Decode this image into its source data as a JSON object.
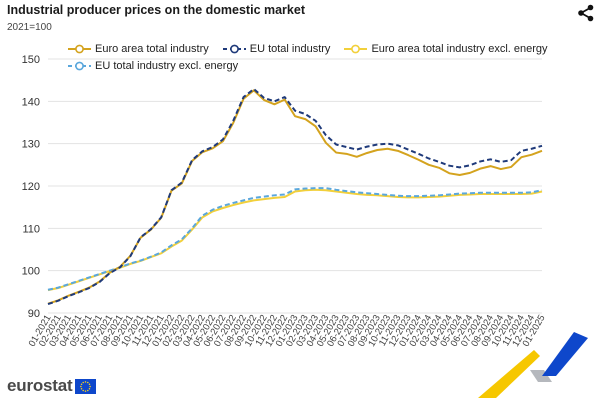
{
  "header": {
    "title": "Industrial producer prices on the domestic market",
    "subtitle": "2021=100",
    "share_icon": "share-icon"
  },
  "brand": {
    "name": "eurostat",
    "flag_color": "#0e47cb",
    "star_color": "#ffd617"
  },
  "colors": {
    "ea_total": "#d4a31e",
    "eu_total": "#1f3a7a",
    "ea_excl": "#f2d03b",
    "eu_excl": "#5aa7dc",
    "grid": "#e3e3e3",
    "deco_yellow": "#f6c700",
    "deco_blue": "#0e47cb",
    "deco_grey": "#b5b8bd"
  },
  "chart_data": {
    "type": "line",
    "title": "Industrial producer prices on the domestic market",
    "ylabel": "2021=100",
    "ylim": [
      90,
      150
    ],
    "yticks": [
      90,
      100,
      110,
      120,
      130,
      140,
      150
    ],
    "grid": true,
    "legend_position": "top",
    "x": [
      "01-2021",
      "02-2021",
      "03-2021",
      "04-2021",
      "05-2021",
      "06-2021",
      "07-2021",
      "08-2021",
      "09-2021",
      "10-2021",
      "11-2021",
      "12-2021",
      "01-2022",
      "02-2022",
      "03-2022",
      "04-2022",
      "05-2022",
      "06-2022",
      "07-2022",
      "08-2022",
      "09-2022",
      "10-2022",
      "11-2022",
      "12-2022",
      "01-2023",
      "02-2023",
      "03-2023",
      "04-2023",
      "05-2023",
      "06-2023",
      "07-2023",
      "08-2023",
      "09-2023",
      "10-2023",
      "11-2023",
      "12-2023",
      "01-2024",
      "02-2024",
      "03-2024",
      "04-2024",
      "05-2024",
      "06-2024",
      "07-2024",
      "08-2024",
      "09-2024",
      "10-2024",
      "11-2024",
      "12-2024",
      "01-2025"
    ],
    "series": [
      {
        "name": "Euro area total industry",
        "color": "#d4a31e",
        "dash": false,
        "values": [
          92.2,
          93.0,
          94.1,
          95.0,
          96.0,
          97.4,
          99.5,
          100.9,
          103.5,
          107.8,
          109.7,
          112.5,
          118.9,
          120.6,
          125.9,
          128.0,
          128.9,
          130.6,
          134.9,
          140.6,
          142.6,
          140.3,
          139.3,
          140.4,
          136.5,
          135.8,
          134.1,
          130.2,
          127.9,
          127.6,
          126.9,
          127.8,
          128.5,
          128.8,
          128.3,
          127.3,
          126.2,
          125.0,
          124.3,
          123.0,
          122.6,
          123.1,
          124.1,
          124.7,
          124.0,
          124.5,
          126.8,
          127.4,
          128.3
        ]
      },
      {
        "name": "EU total industry",
        "color": "#1f3a7a",
        "dash": true,
        "values": [
          92.1,
          92.9,
          94.0,
          94.9,
          95.9,
          97.3,
          99.4,
          100.8,
          103.4,
          107.9,
          109.8,
          112.6,
          119.0,
          120.8,
          126.1,
          128.2,
          129.2,
          131.0,
          135.4,
          141.0,
          142.9,
          140.8,
          140.0,
          141.0,
          137.8,
          137.0,
          135.4,
          132.0,
          129.8,
          129.2,
          128.6,
          129.3,
          129.8,
          130.0,
          129.6,
          128.6,
          127.6,
          126.5,
          125.7,
          124.8,
          124.4,
          124.9,
          125.8,
          126.3,
          125.7,
          126.1,
          128.3,
          128.8,
          129.5
        ]
      },
      {
        "name": "Euro area total industry excl. energy",
        "color": "#f2d03b",
        "dash": false,
        "values": [
          95.4,
          95.9,
          96.7,
          97.5,
          98.3,
          99.1,
          99.9,
          100.7,
          101.6,
          102.3,
          103.2,
          104.1,
          105.7,
          107.1,
          109.7,
          112.6,
          114.0,
          114.8,
          115.5,
          116.1,
          116.6,
          116.9,
          117.2,
          117.4,
          118.7,
          119.0,
          119.1,
          119.0,
          118.7,
          118.4,
          118.1,
          117.9,
          117.8,
          117.6,
          117.4,
          117.3,
          117.3,
          117.4,
          117.5,
          117.7,
          117.9,
          118.0,
          118.1,
          118.1,
          118.1,
          118.1,
          118.1,
          118.2,
          118.7
        ]
      },
      {
        "name": "EU total industry excl. energy",
        "color": "#5aa7dc",
        "dash": true,
        "values": [
          95.5,
          96.0,
          96.8,
          97.6,
          98.4,
          99.2,
          100.0,
          100.8,
          101.7,
          102.4,
          103.3,
          104.3,
          106.0,
          107.4,
          110.0,
          113.0,
          114.4,
          115.3,
          116.0,
          116.6,
          117.2,
          117.5,
          117.8,
          118.0,
          119.2,
          119.4,
          119.5,
          119.5,
          119.1,
          118.8,
          118.5,
          118.3,
          118.1,
          117.9,
          117.7,
          117.6,
          117.6,
          117.7,
          117.8,
          118.0,
          118.2,
          118.3,
          118.4,
          118.4,
          118.4,
          118.4,
          118.4,
          118.5,
          119.0
        ]
      }
    ]
  }
}
